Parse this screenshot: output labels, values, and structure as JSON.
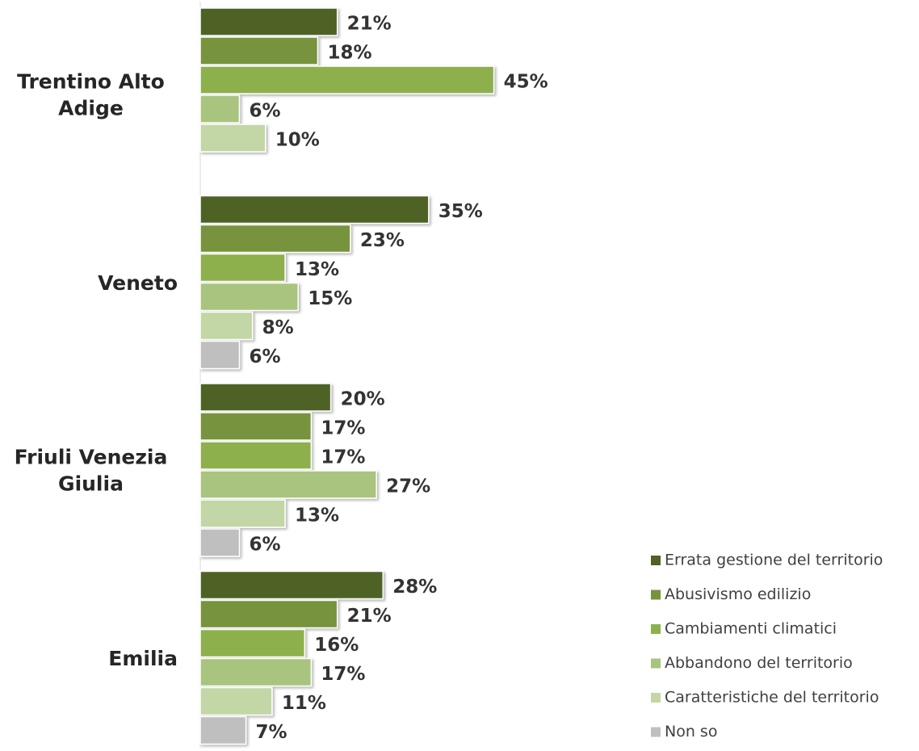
{
  "chart_data": {
    "type": "hbar",
    "categories": [
      "Trentino Alto Adige",
      "Veneto",
      "Friuli Venezia Giulia",
      "Emilia"
    ],
    "series": [
      {
        "name": "Errata gestione del territorio",
        "color": "#4f6228",
        "values": [
          21,
          35,
          20,
          28
        ],
        "value_labels": [
          "21%",
          "35%",
          "20%",
          "28%"
        ]
      },
      {
        "name": "Abusivismo edilizio",
        "color": "#77933c",
        "values": [
          18,
          23,
          17,
          21
        ],
        "value_labels": [
          "18%",
          "23%",
          "17%",
          "21%"
        ]
      },
      {
        "name": "Cambiamenti climatici",
        "color": "#8db04e",
        "values": [
          45,
          13,
          17,
          16
        ],
        "value_labels": [
          "45%",
          "13%",
          "17%",
          "16%"
        ]
      },
      {
        "name": "Abbandono del territorio",
        "color": "#a9c47f",
        "values": [
          6,
          15,
          27,
          17
        ],
        "value_labels": [
          "6%",
          "15%",
          "27%",
          "17%"
        ]
      },
      {
        "name": "Caratteristiche del territorio",
        "color": "#c3d6a5",
        "values": [
          10,
          8,
          13,
          11
        ],
        "value_labels": [
          "10%",
          "8%",
          "13%",
          "11%"
        ]
      },
      {
        "name": "Non so",
        "color": "#bfbfbf",
        "values": [
          null,
          6,
          6,
          7
        ],
        "value_labels": [
          null,
          "6%",
          "6%",
          "7%"
        ]
      }
    ],
    "legend": "right-bottom"
  }
}
